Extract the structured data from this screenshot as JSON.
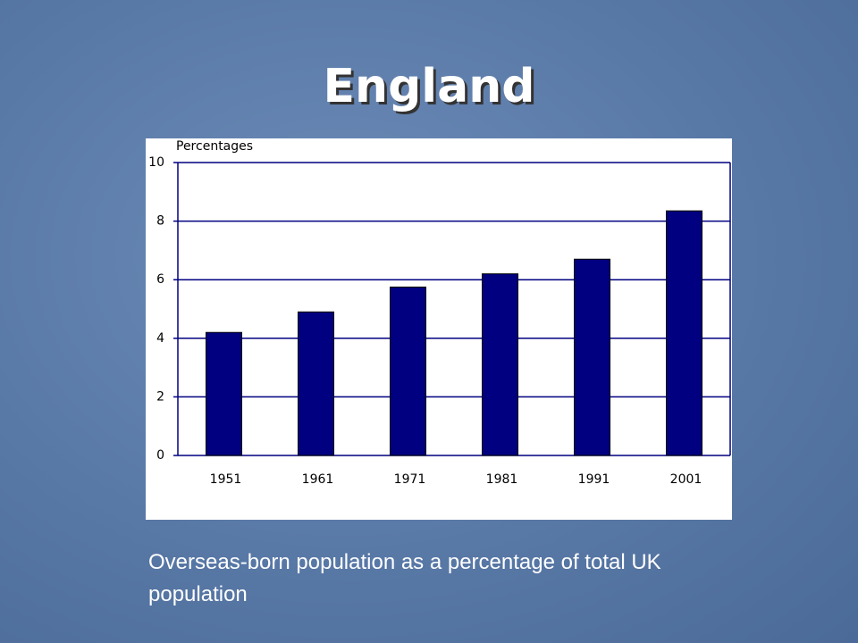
{
  "chart_data": {
    "type": "bar",
    "title": "England",
    "y_label": "Percentages",
    "caption": "Overseas-born population as a percentage of total UK population",
    "categories": [
      "1951",
      "1961",
      "1971",
      "1981",
      "1991",
      "2001"
    ],
    "values": [
      4.2,
      4.9,
      5.75,
      6.2,
      6.7,
      8.35
    ],
    "color": "#000080",
    "ylim": [
      0,
      10
    ],
    "yticks": [
      0,
      2,
      4,
      6,
      8,
      10
    ],
    "grid": true
  }
}
